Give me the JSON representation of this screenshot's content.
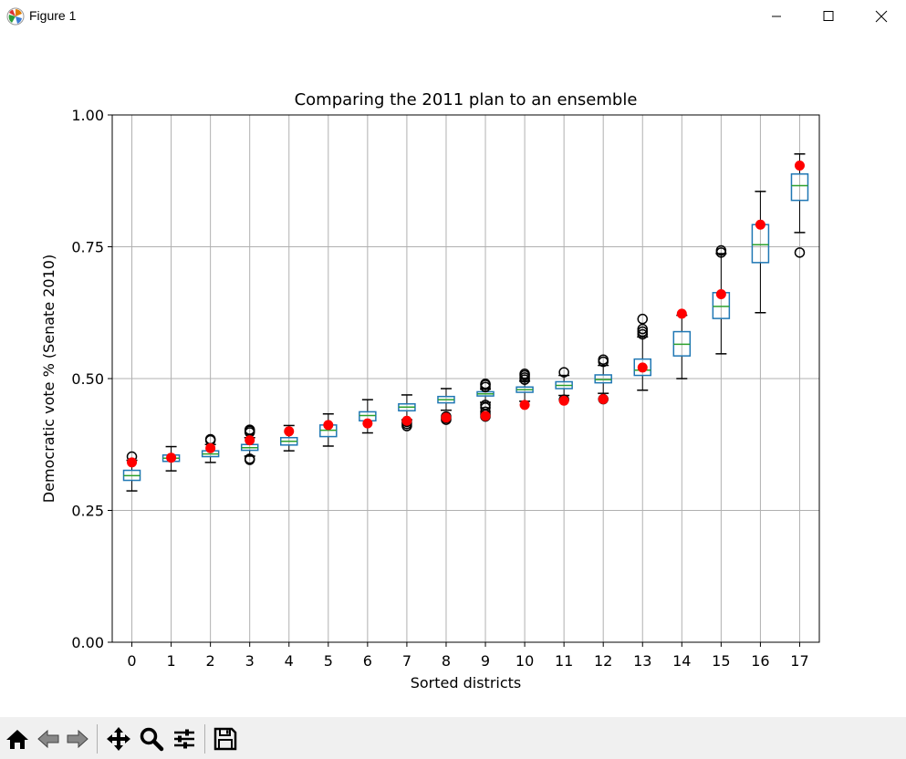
{
  "window": {
    "title": "Figure 1",
    "app_icon": "matplotlib-logo-icon",
    "controls": [
      "minimize-icon",
      "maximize-icon",
      "close-icon"
    ]
  },
  "toolbar": {
    "buttons": [
      {
        "name": "home",
        "icon": "home-icon"
      },
      {
        "name": "back",
        "icon": "back-arrow-icon"
      },
      {
        "name": "forward",
        "icon": "forward-arrow-icon"
      },
      {
        "name": "pan",
        "icon": "pan-icon"
      },
      {
        "name": "zoom",
        "icon": "zoom-icon"
      },
      {
        "name": "configure",
        "icon": "sliders-icon"
      },
      {
        "name": "save",
        "icon": "save-icon"
      }
    ]
  },
  "colors": {
    "box": "#1f77b4",
    "median": "#2ca02c",
    "enacted": "#ff0000",
    "grid": "#b0b0b0",
    "toolbar_bg": "#f0f0f0"
  },
  "chart_data": {
    "type": "box",
    "title": "Comparing the 2011 plan to an ensemble",
    "xlabel": "Sorted districts",
    "ylabel": "Democratic vote % (Senate 2010)",
    "ylim": [
      0.0,
      1.0
    ],
    "yticks": [
      "0.00",
      "0.25",
      "0.50",
      "0.75",
      "1.00"
    ],
    "categories": [
      "0",
      "1",
      "2",
      "3",
      "4",
      "5",
      "6",
      "7",
      "8",
      "9",
      "10",
      "11",
      "12",
      "13",
      "14",
      "15",
      "16",
      "17"
    ],
    "boxes": [
      {
        "whislo": 0.287,
        "q1": 0.307,
        "med": 0.316,
        "q3": 0.326,
        "whishi": 0.345,
        "fliers": [
          0.352
        ]
      },
      {
        "whislo": 0.325,
        "q1": 0.343,
        "med": 0.349,
        "q3": 0.355,
        "whishi": 0.371,
        "fliers": []
      },
      {
        "whislo": 0.341,
        "q1": 0.352,
        "med": 0.357,
        "q3": 0.363,
        "whishi": 0.375,
        "fliers": [
          0.383,
          0.385
        ]
      },
      {
        "whislo": 0.353,
        "q1": 0.364,
        "med": 0.369,
        "q3": 0.375,
        "whishi": 0.388,
        "fliers": [
          0.346,
          0.348,
          0.398,
          0.401,
          0.403
        ]
      },
      {
        "whislo": 0.363,
        "q1": 0.374,
        "med": 0.381,
        "q3": 0.388,
        "whishi": 0.411,
        "fliers": []
      },
      {
        "whislo": 0.372,
        "q1": 0.39,
        "med": 0.402,
        "q3": 0.412,
        "whishi": 0.433,
        "fliers": []
      },
      {
        "whislo": 0.397,
        "q1": 0.42,
        "med": 0.43,
        "q3": 0.437,
        "whishi": 0.46,
        "fliers": []
      },
      {
        "whislo": 0.422,
        "q1": 0.439,
        "med": 0.446,
        "q3": 0.452,
        "whishi": 0.469,
        "fliers": [
          0.41,
          0.414,
          0.418
        ]
      },
      {
        "whislo": 0.44,
        "q1": 0.454,
        "med": 0.46,
        "q3": 0.466,
        "whishi": 0.481,
        "fliers": [
          0.422,
          0.425,
          0.428
        ]
      },
      {
        "whislo": 0.455,
        "q1": 0.467,
        "med": 0.471,
        "q3": 0.475,
        "whishi": 0.48,
        "fliers": [
          0.428,
          0.432,
          0.437,
          0.445,
          0.45,
          0.484,
          0.488,
          0.49
        ]
      },
      {
        "whislo": 0.457,
        "q1": 0.474,
        "med": 0.479,
        "q3": 0.484,
        "whishi": 0.495,
        "fliers": [
          0.498,
          0.502,
          0.506,
          0.509
        ]
      },
      {
        "whislo": 0.468,
        "q1": 0.481,
        "med": 0.487,
        "q3": 0.494,
        "whishi": 0.506,
        "fliers": [
          0.46,
          0.512
        ]
      },
      {
        "whislo": 0.472,
        "q1": 0.492,
        "med": 0.498,
        "q3": 0.507,
        "whishi": 0.525,
        "fliers": [
          0.461,
          0.532,
          0.536
        ]
      },
      {
        "whislo": 0.478,
        "q1": 0.506,
        "med": 0.516,
        "q3": 0.537,
        "whishi": 0.579,
        "fliers": [
          0.584,
          0.589,
          0.594,
          0.613
        ]
      },
      {
        "whislo": 0.5,
        "q1": 0.543,
        "med": 0.565,
        "q3": 0.589,
        "whishi": 0.62,
        "fliers": []
      },
      {
        "whislo": 0.547,
        "q1": 0.614,
        "med": 0.637,
        "q3": 0.663,
        "whishi": 0.737,
        "fliers": [
          0.739,
          0.743
        ]
      },
      {
        "whislo": 0.625,
        "q1": 0.72,
        "med": 0.754,
        "q3": 0.792,
        "whishi": 0.855,
        "fliers": []
      },
      {
        "whislo": 0.777,
        "q1": 0.838,
        "med": 0.866,
        "q3": 0.888,
        "whishi": 0.926,
        "fliers": [
          0.739
        ]
      }
    ],
    "enacted_plan": [
      0.341,
      0.35,
      0.368,
      0.383,
      0.4,
      0.412,
      0.415,
      0.42,
      0.426,
      0.429,
      0.45,
      0.458,
      0.461,
      0.521,
      0.623,
      0.66,
      0.792,
      0.904
    ],
    "grid": true
  }
}
